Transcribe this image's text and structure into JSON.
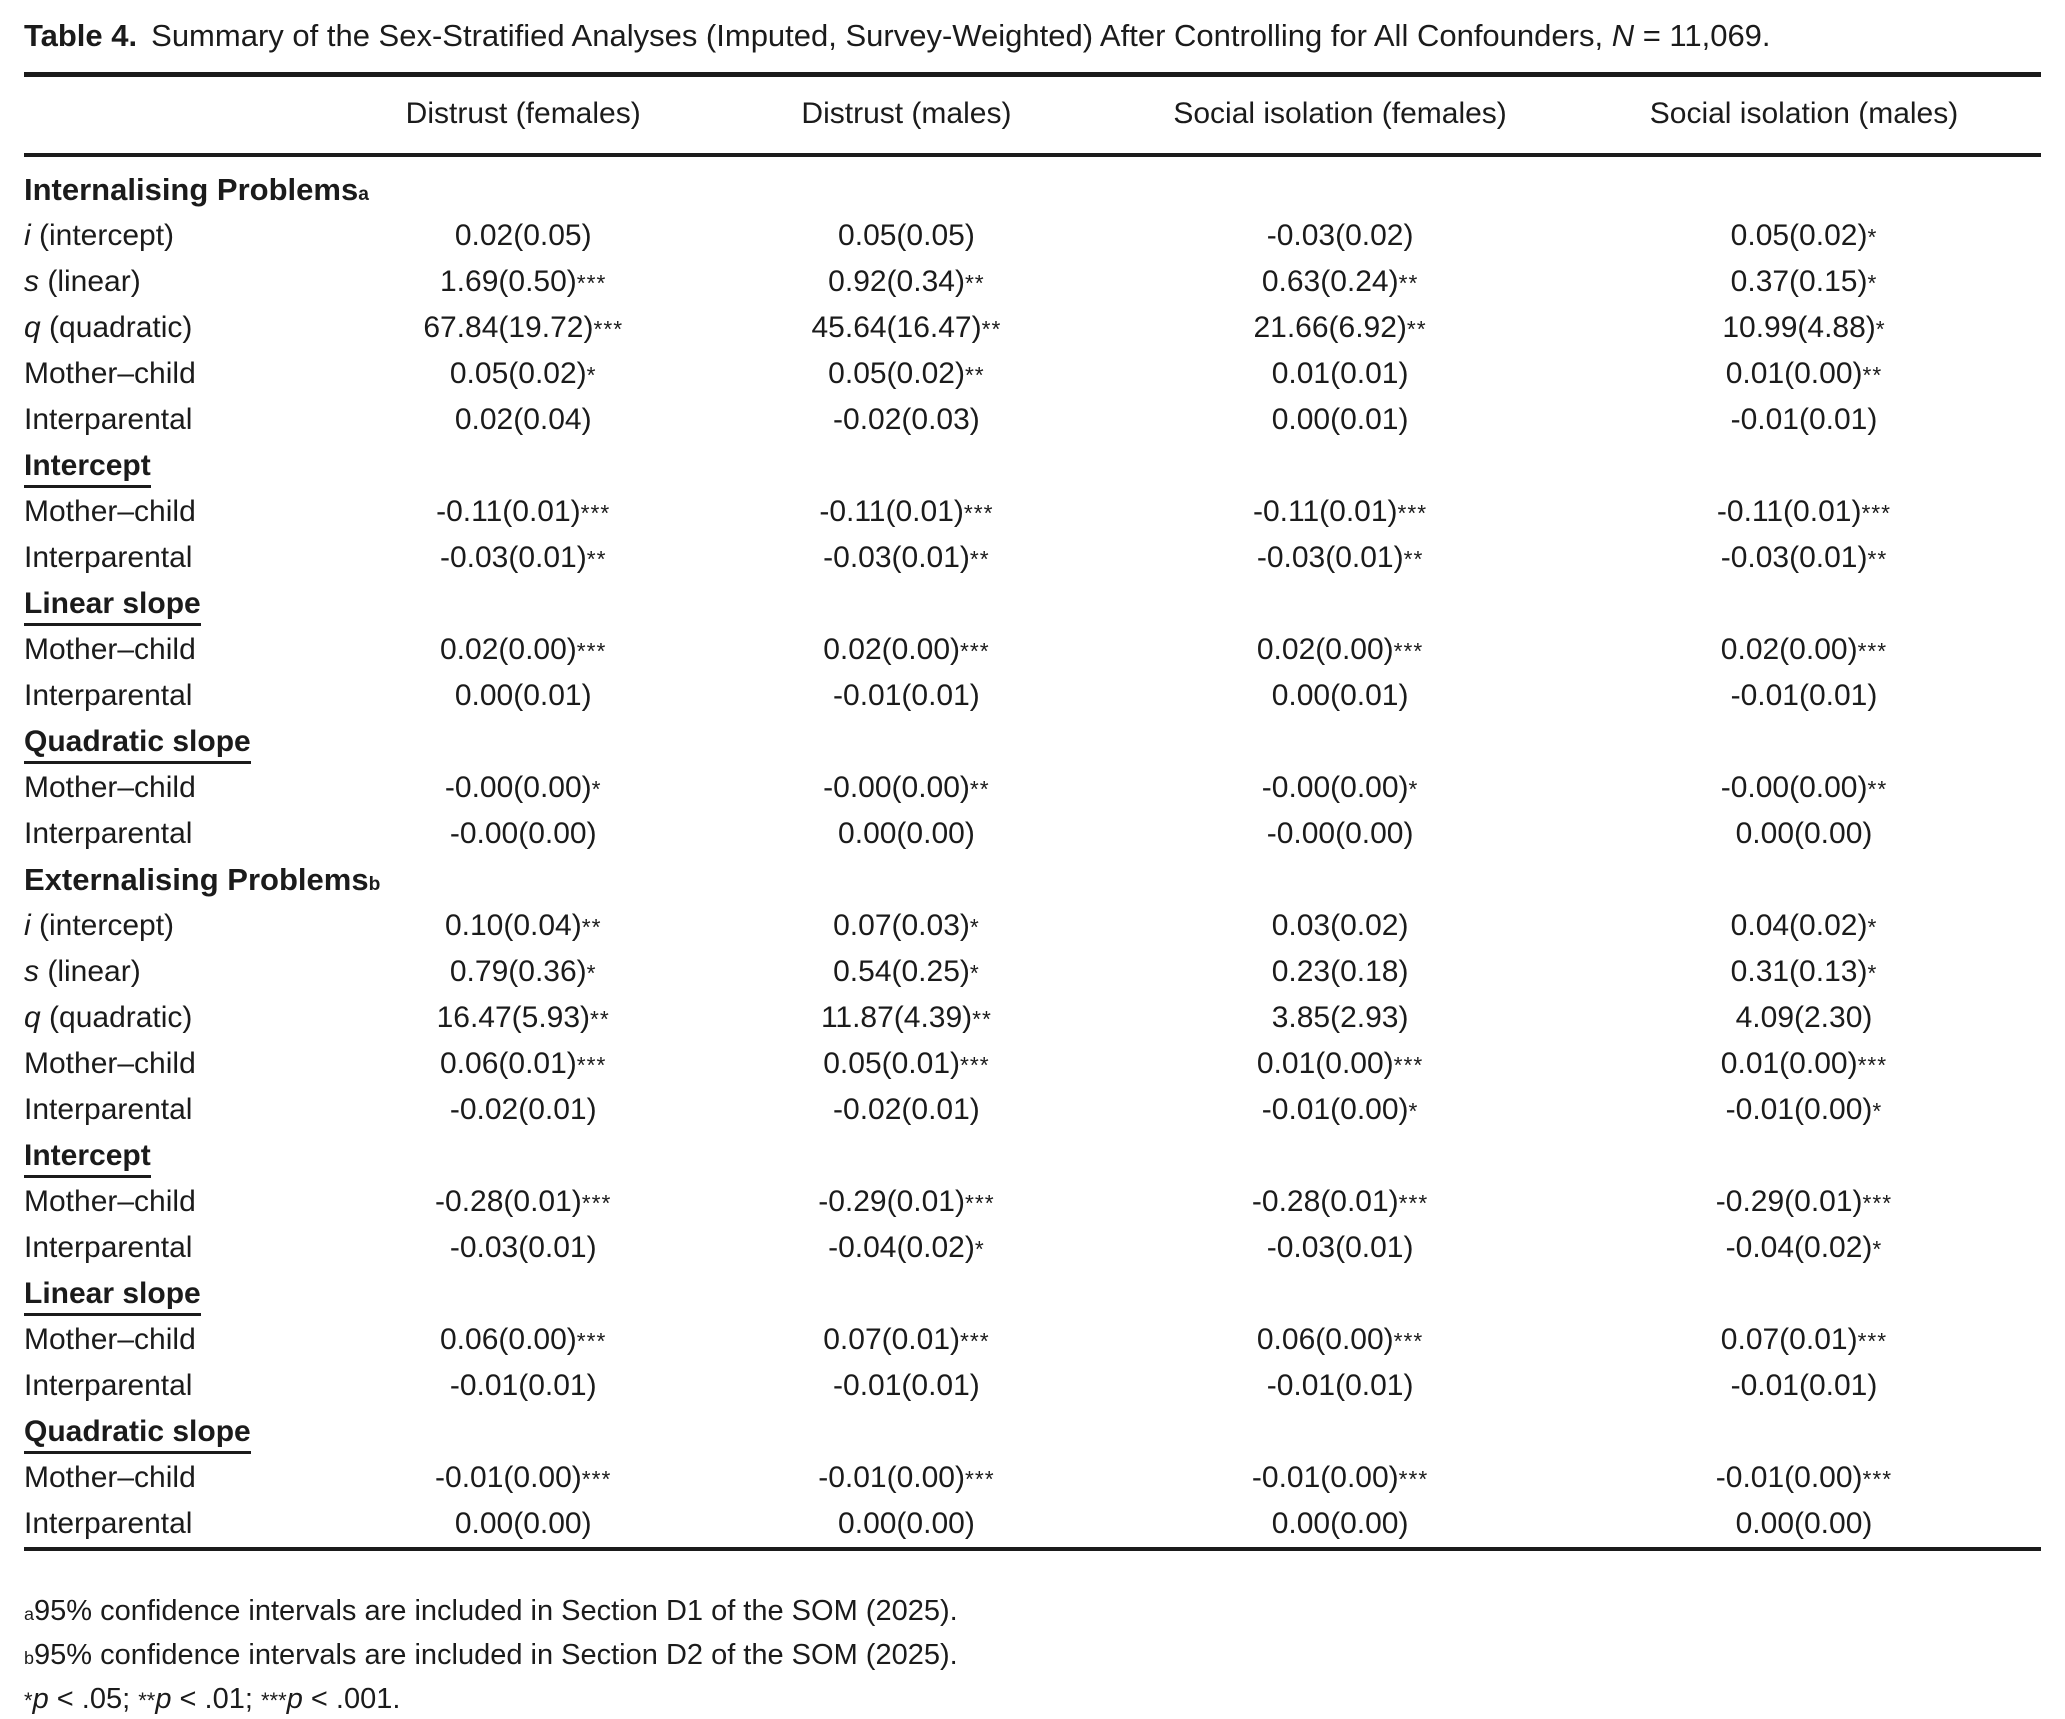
{
  "caption": {
    "label": "Table 4.",
    "body": "Summary of the Sex-Stratified Analyses (Imputed, Survey-Weighted) After Controlling for All Confounders, ",
    "n_symbol": "N",
    "n_value": " = 11,069."
  },
  "table": {
    "columns": [
      {
        "label": ""
      },
      {
        "label": "Distrust (females)"
      },
      {
        "label": "Distrust (males)"
      },
      {
        "label": "Social isolation (females)"
      },
      {
        "label": "Social isolation (males)"
      }
    ],
    "rows": [
      {
        "kind": "section",
        "label": "Internalising Problems",
        "sup": "a"
      },
      {
        "kind": "data",
        "italic": "i",
        "label": " (intercept)",
        "cells": [
          "0.02(0.05)",
          "0.05(0.05)",
          "-0.03(0.02)",
          "0.05(0.02)*"
        ]
      },
      {
        "kind": "data",
        "italic": "s",
        "label": " (linear)",
        "cells": [
          "1.69(0.50)***",
          "0.92(0.34)**",
          "0.63(0.24)**",
          "0.37(0.15)*"
        ]
      },
      {
        "kind": "data",
        "italic": "q",
        "label": " (quadratic)",
        "cells": [
          "67.84(19.72)***",
          "45.64(16.47)**",
          "21.66(6.92)**",
          "10.99(4.88)*"
        ]
      },
      {
        "kind": "data",
        "label": "Mother–child",
        "cells": [
          "0.05(0.02)*",
          "0.05(0.02)**",
          "0.01(0.01)",
          "0.01(0.00)**"
        ]
      },
      {
        "kind": "data",
        "label": "Interparental",
        "cells": [
          "0.02(0.04)",
          "-0.02(0.03)",
          "0.00(0.01)",
          "-0.01(0.01)"
        ]
      },
      {
        "kind": "subsection",
        "label": "Intercept"
      },
      {
        "kind": "data",
        "label": "Mother–child",
        "cells": [
          "-0.11(0.01)***",
          "-0.11(0.01)***",
          "-0.11(0.01)***",
          "-0.11(0.01)***"
        ]
      },
      {
        "kind": "data",
        "label": "Interparental",
        "cells": [
          "-0.03(0.01)**",
          "-0.03(0.01)**",
          "-0.03(0.01)**",
          "-0.03(0.01)**"
        ]
      },
      {
        "kind": "subsection",
        "label": "Linear slope"
      },
      {
        "kind": "data",
        "label": "Mother–child",
        "cells": [
          "0.02(0.00)***",
          "0.02(0.00)***",
          "0.02(0.00)***",
          "0.02(0.00)***"
        ]
      },
      {
        "kind": "data",
        "label": "Interparental",
        "cells": [
          "0.00(0.01)",
          "-0.01(0.01)",
          "0.00(0.01)",
          "-0.01(0.01)"
        ]
      },
      {
        "kind": "subsection",
        "label": "Quadratic slope"
      },
      {
        "kind": "data",
        "label": "Mother–child",
        "cells": [
          "-0.00(0.00)*",
          "-0.00(0.00)**",
          "-0.00(0.00)*",
          "-0.00(0.00)**"
        ]
      },
      {
        "kind": "data",
        "label": "Interparental",
        "cells": [
          "-0.00(0.00)",
          "0.00(0.00)",
          "-0.00(0.00)",
          "0.00(0.00)"
        ]
      },
      {
        "kind": "section",
        "label": "Externalising Problems",
        "sup": "b"
      },
      {
        "kind": "data",
        "italic": "i",
        "label": " (intercept)",
        "cells": [
          "0.10(0.04)**",
          "0.07(0.03)*",
          "0.03(0.02)",
          "0.04(0.02)*"
        ]
      },
      {
        "kind": "data",
        "italic": "s",
        "label": " (linear)",
        "cells": [
          "0.79(0.36)*",
          "0.54(0.25)*",
          "0.23(0.18)",
          "0.31(0.13)*"
        ]
      },
      {
        "kind": "data",
        "italic": "q",
        "label": " (quadratic)",
        "cells": [
          "16.47(5.93)**",
          "11.87(4.39)**",
          "3.85(2.93)",
          "4.09(2.30)"
        ]
      },
      {
        "kind": "data",
        "label": "Mother–child",
        "cells": [
          "0.06(0.01)***",
          "0.05(0.01)***",
          "0.01(0.00)***",
          "0.01(0.00)***"
        ]
      },
      {
        "kind": "data",
        "label": "Interparental",
        "cells": [
          "-0.02(0.01)",
          "-0.02(0.01)",
          "-0.01(0.00)*",
          "-0.01(0.00)*"
        ]
      },
      {
        "kind": "subsection",
        "label": "Intercept"
      },
      {
        "kind": "data",
        "label": "Mother–child",
        "cells": [
          "-0.28(0.01)***",
          "-0.29(0.01)***",
          "-0.28(0.01)***",
          "-0.29(0.01)***"
        ]
      },
      {
        "kind": "data",
        "label": "Interparental",
        "cells": [
          "-0.03(0.01)",
          "-0.04(0.02)*",
          "-0.03(0.01)",
          "-0.04(0.02)*"
        ]
      },
      {
        "kind": "subsection",
        "label": "Linear slope"
      },
      {
        "kind": "data",
        "label": "Mother–child",
        "cells": [
          "0.06(0.00)***",
          "0.07(0.01)***",
          "0.06(0.00)***",
          "0.07(0.01)***"
        ]
      },
      {
        "kind": "data",
        "label": "Interparental",
        "cells": [
          "-0.01(0.01)",
          "-0.01(0.01)",
          "-0.01(0.01)",
          "-0.01(0.01)"
        ]
      },
      {
        "kind": "subsection",
        "label": "Quadratic slope"
      },
      {
        "kind": "data",
        "label": "Mother–child",
        "cells": [
          "-0.01(0.00)***",
          "-0.01(0.00)***",
          "-0.01(0.00)***",
          "-0.01(0.00)***"
        ]
      },
      {
        "kind": "data",
        "label": "Interparental",
        "cells": [
          "0.00(0.00)",
          "0.00(0.00)",
          "0.00(0.00)",
          "0.00(0.00)"
        ]
      }
    ]
  },
  "footnotes": {
    "a": {
      "sup": "a",
      "text": "95% confidence intervals are included in Section D1 of the SOM (2025)."
    },
    "b": {
      "sup": "b",
      "text": "95% confidence intervals are included in Section D2 of the SOM (2025)."
    },
    "significance": [
      {
        "stars": "*",
        "p": "p",
        "tail": " < .05; "
      },
      {
        "stars": "**",
        "p": "p",
        "tail": " < .01; "
      },
      {
        "stars": "***",
        "p": "p",
        "tail": " < .001."
      }
    ]
  }
}
